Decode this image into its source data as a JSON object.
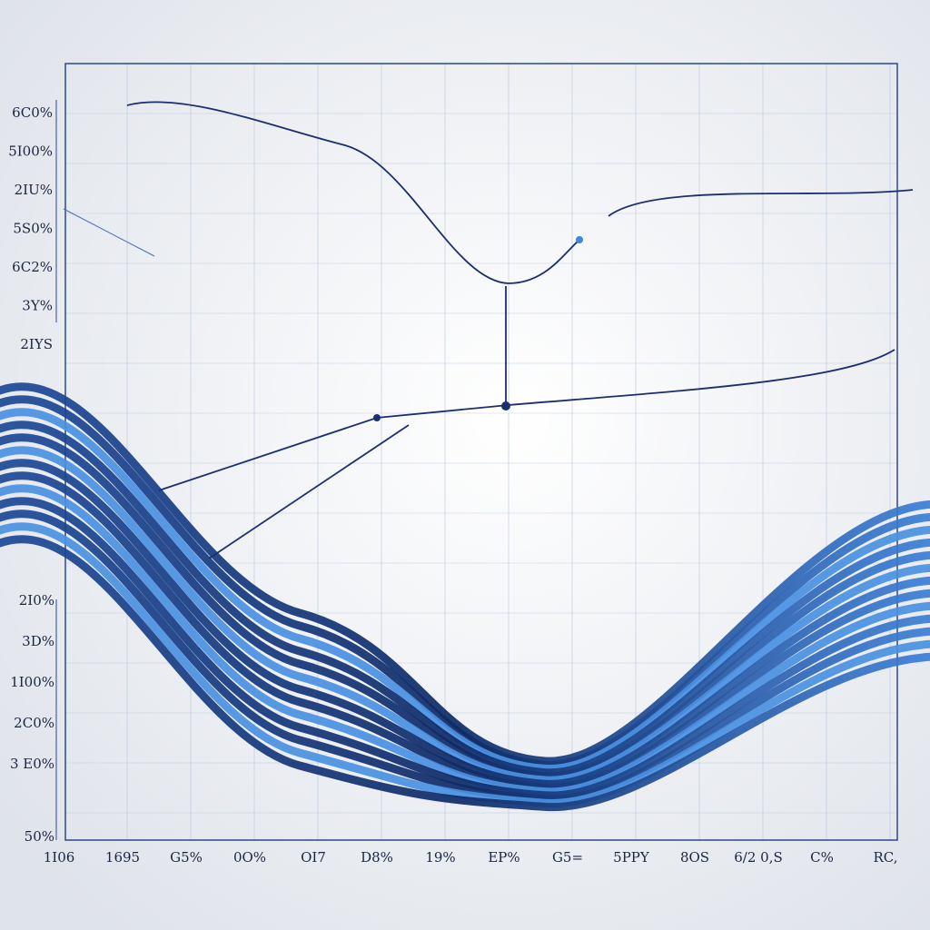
{
  "y_labels_top": [
    "6C0%",
    "5I00%",
    "2IU%",
    "5S0%",
    "6C2%",
    "3Y%",
    "2IYS"
  ],
  "y_labels_bottom": [
    "2I0%",
    "3D%",
    "1I00%",
    "2C0%",
    "3 E0%",
    "50%"
  ],
  "x_labels": [
    "1I06",
    "1695",
    "G5%",
    "0O%",
    "OI7",
    "D8%",
    "19%",
    "EP%",
    "G5=",
    "5PPY",
    "8OS",
    "6/2 0,S",
    "C%",
    "RC,"
  ]
}
